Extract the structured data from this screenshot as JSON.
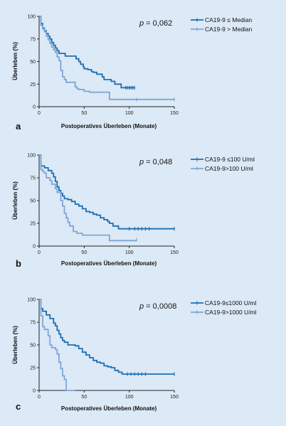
{
  "colors": {
    "dark": "#1f6fb2",
    "light": "#7fa6d6",
    "axis": "#222222",
    "background": "#dce9f6"
  },
  "chart_data": [
    {
      "type": "line",
      "panel_label": "a",
      "p_prefix": "p",
      "p_value": " = 0,062",
      "xlabel": "Postoperatives Überleben (Monate)",
      "ylabel": "Überleben (%)",
      "xlim": [
        0,
        150
      ],
      "ylim": [
        0,
        100
      ],
      "x_ticks": [
        0,
        50,
        100,
        150
      ],
      "y_ticks": [
        0,
        25,
        50,
        75,
        100
      ],
      "series": [
        {
          "name": "CA19-9 ≤ Median",
          "color": "#1f6fb2",
          "points": [
            [
              0,
              100
            ],
            [
              2,
              92
            ],
            [
              4,
              87
            ],
            [
              6,
              84
            ],
            [
              8,
              81
            ],
            [
              10,
              78
            ],
            [
              12,
              75
            ],
            [
              14,
              71
            ],
            [
              16,
              68
            ],
            [
              18,
              65
            ],
            [
              20,
              62
            ],
            [
              22,
              59
            ],
            [
              28,
              59
            ],
            [
              29,
              56
            ],
            [
              40,
              56
            ],
            [
              41,
              53
            ],
            [
              44,
              50
            ],
            [
              46,
              47
            ],
            [
              49,
              44
            ],
            [
              50,
              42
            ],
            [
              54,
              41
            ],
            [
              58,
              39
            ],
            [
              60,
              38
            ],
            [
              64,
              36
            ],
            [
              70,
              33
            ],
            [
              72,
              30
            ],
            [
              80,
              28
            ],
            [
              84,
              25
            ],
            [
              90,
              25
            ],
            [
              91,
              21
            ],
            [
              106,
              21
            ]
          ],
          "censored": [
            [
              96,
              21
            ],
            [
              98,
              21
            ],
            [
              100,
              21
            ],
            [
              102,
              21
            ],
            [
              104,
              21
            ],
            [
              106,
              21
            ]
          ]
        },
        {
          "name": "CA19-9 > Median",
          "color": "#7fa6d6",
          "points": [
            [
              0,
              100
            ],
            [
              2,
              90
            ],
            [
              4,
              86
            ],
            [
              6,
              83
            ],
            [
              8,
              78
            ],
            [
              10,
              74
            ],
            [
              12,
              70
            ],
            [
              14,
              66
            ],
            [
              16,
              63
            ],
            [
              18,
              60
            ],
            [
              20,
              55
            ],
            [
              22,
              51
            ],
            [
              24,
              40
            ],
            [
              26,
              33
            ],
            [
              28,
              30
            ],
            [
              30,
              27
            ],
            [
              38,
              27
            ],
            [
              40,
              22
            ],
            [
              42,
              20
            ],
            [
              44,
              19
            ],
            [
              50,
              17
            ],
            [
              56,
              16
            ],
            [
              76,
              16
            ],
            [
              78,
              8
            ],
            [
              150,
              8
            ]
          ],
          "censored": [
            [
              108,
              8
            ],
            [
              150,
              8
            ]
          ]
        }
      ]
    },
    {
      "type": "line",
      "panel_label": "b",
      "p_prefix": "p",
      "p_value": " = 0,048",
      "xlabel": "Postoperatives Überleben (Monate)",
      "ylabel": "Überleben (%)",
      "xlim": [
        0,
        150
      ],
      "ylim": [
        0,
        100
      ],
      "x_ticks": [
        0,
        50,
        100,
        150
      ],
      "y_ticks": [
        0,
        25,
        50,
        75,
        100
      ],
      "series": [
        {
          "name": "CA19-9 ≤100 U/ml",
          "color": "#1f6fb2",
          "points": [
            [
              0,
              100
            ],
            [
              2,
              88
            ],
            [
              6,
              86
            ],
            [
              10,
              83
            ],
            [
              14,
              80
            ],
            [
              16,
              76
            ],
            [
              18,
              71
            ],
            [
              20,
              65
            ],
            [
              22,
              61
            ],
            [
              24,
              58
            ],
            [
              26,
              55
            ],
            [
              28,
              52
            ],
            [
              32,
              51
            ],
            [
              36,
              49
            ],
            [
              40,
              46
            ],
            [
              44,
              44
            ],
            [
              48,
              41
            ],
            [
              52,
              38
            ],
            [
              56,
              37
            ],
            [
              60,
              35
            ],
            [
              64,
              34
            ],
            [
              68,
              31
            ],
            [
              72,
              29
            ],
            [
              76,
              27
            ],
            [
              78,
              25
            ],
            [
              80,
              25
            ],
            [
              82,
              22
            ],
            [
              88,
              19
            ],
            [
              150,
              19
            ]
          ],
          "censored": [
            [
              100,
              19
            ],
            [
              106,
              19
            ],
            [
              110,
              19
            ],
            [
              114,
              19
            ],
            [
              118,
              19
            ],
            [
              122,
              19
            ],
            [
              150,
              19
            ]
          ]
        },
        {
          "name": "CA19-9>100 U/ml",
          "color": "#7fa6d6",
          "points": [
            [
              0,
              100
            ],
            [
              2,
              84
            ],
            [
              4,
              82
            ],
            [
              6,
              80
            ],
            [
              8,
              75
            ],
            [
              12,
              72
            ],
            [
              14,
              68
            ],
            [
              18,
              63
            ],
            [
              20,
              59
            ],
            [
              24,
              50
            ],
            [
              26,
              44
            ],
            [
              28,
              36
            ],
            [
              30,
              31
            ],
            [
              32,
              26
            ],
            [
              34,
              22
            ],
            [
              38,
              16
            ],
            [
              42,
              14
            ],
            [
              48,
              12
            ],
            [
              76,
              12
            ],
            [
              78,
              6
            ],
            [
              108,
              7
            ]
          ],
          "censored": [
            [
              108,
              7
            ]
          ]
        }
      ]
    },
    {
      "type": "line",
      "panel_label": "c",
      "p_prefix": "p",
      "p_value": " = 0,0008",
      "xlabel": "Postoperatives Überleben (Monate)",
      "ylabel": "Überleben (%)",
      "xlim": [
        0,
        150
      ],
      "ylim": [
        0,
        100
      ],
      "x_ticks": [
        0,
        50,
        100,
        150
      ],
      "y_ticks": [
        0,
        25,
        50,
        75,
        100
      ],
      "series": [
        {
          "name": "CA19-9≤1000 U/ml",
          "color": "#1f6fb2",
          "points": [
            [
              0,
              100
            ],
            [
              2,
              90
            ],
            [
              4,
              87
            ],
            [
              8,
              83
            ],
            [
              12,
              79
            ],
            [
              16,
              74
            ],
            [
              18,
              71
            ],
            [
              20,
              66
            ],
            [
              22,
              62
            ],
            [
              24,
              58
            ],
            [
              26,
              55
            ],
            [
              28,
              53
            ],
            [
              32,
              50
            ],
            [
              40,
              49
            ],
            [
              44,
              46
            ],
            [
              48,
              42
            ],
            [
              52,
              39
            ],
            [
              56,
              36
            ],
            [
              60,
              33
            ],
            [
              64,
              31
            ],
            [
              68,
              30
            ],
            [
              72,
              27
            ],
            [
              76,
              26
            ],
            [
              80,
              25
            ],
            [
              84,
              22
            ],
            [
              88,
              20
            ],
            [
              92,
              18
            ],
            [
              150,
              18
            ]
          ],
          "censored": [
            [
              98,
              18
            ],
            [
              102,
              18
            ],
            [
              106,
              18
            ],
            [
              110,
              18
            ],
            [
              114,
              18
            ],
            [
              118,
              18
            ],
            [
              150,
              18
            ]
          ]
        },
        {
          "name": "CA19-9>1000 U/ml",
          "color": "#7fa6d6",
          "points": [
            [
              0,
              100
            ],
            [
              2,
              82
            ],
            [
              4,
              70
            ],
            [
              6,
              67
            ],
            [
              10,
              60
            ],
            [
              12,
              50
            ],
            [
              14,
              47
            ],
            [
              18,
              45
            ],
            [
              20,
              40
            ],
            [
              22,
              31
            ],
            [
              24,
              24
            ],
            [
              26,
              16
            ],
            [
              28,
              12
            ],
            [
              30,
              0
            ],
            [
              40,
              0
            ]
          ],
          "censored": []
        }
      ]
    }
  ]
}
